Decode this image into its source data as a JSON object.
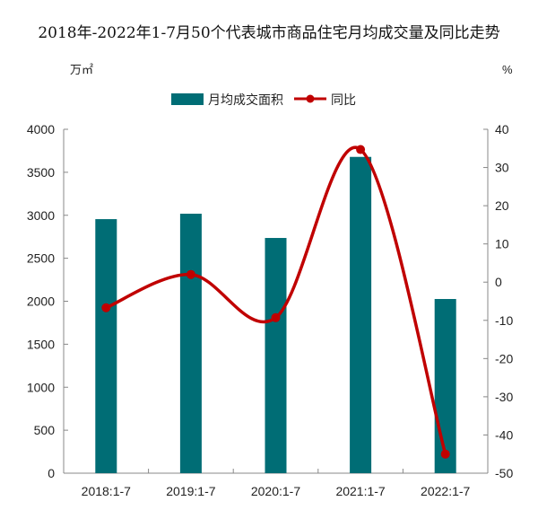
{
  "chart_data": {
    "type": "bar+line",
    "title": "2018年-2022年1-7月50个代表城市商品住宅月均成交量及同比走势",
    "left_unit": "万㎡",
    "right_unit": "%",
    "categories": [
      "2018:1-7",
      "2019:1-7",
      "2020:1-7",
      "2021:1-7",
      "2022:1-7"
    ],
    "series": [
      {
        "name": "月均成交面积",
        "type": "bar",
        "axis": "left",
        "color": "#006d75",
        "values": [
          2955,
          3018,
          2736,
          3679,
          2026
        ]
      },
      {
        "name": "同比",
        "type": "line",
        "axis": "right",
        "color": "#c00000",
        "values": [
          -6.7,
          2.0,
          -9.3,
          34.7,
          -45.0
        ]
      }
    ],
    "ylim_left": [
      0,
      4000
    ],
    "yticks_left": [
      0,
      500,
      1000,
      1500,
      2000,
      2500,
      3000,
      3500,
      4000
    ],
    "ylim_right": [
      -50,
      40
    ],
    "yticks_right": [
      -50,
      -40,
      -30,
      -20,
      -10,
      0,
      10,
      20,
      30,
      40
    ],
    "legend_position": "top-center",
    "grid": false
  }
}
